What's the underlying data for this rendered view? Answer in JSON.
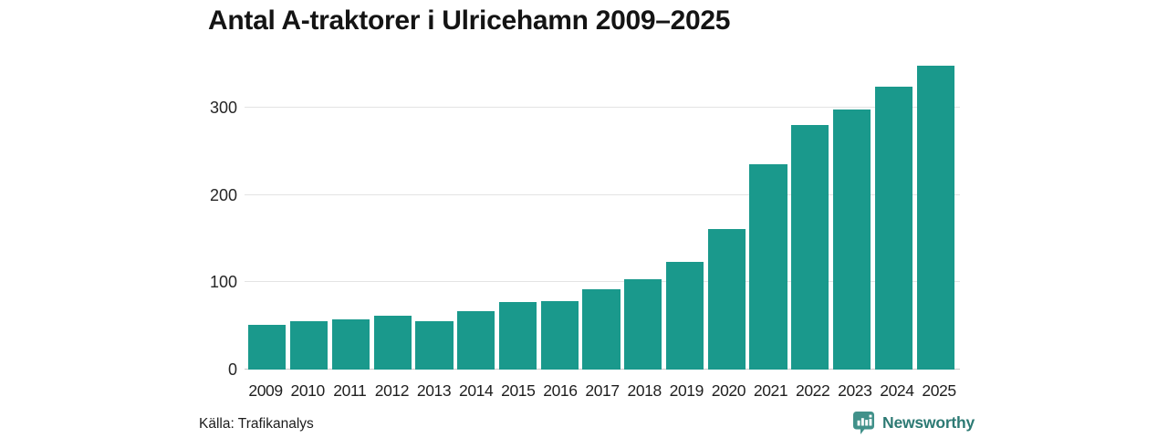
{
  "title": "Antal A-traktorer i Ulricehamn 2009–2025",
  "source": "Källa: Trafikanalys",
  "brand": {
    "name": "Newsworthy",
    "icon": "newsworthy-logo-icon",
    "icon_color": "#41918a",
    "text_color": "#2d7a74"
  },
  "colors": {
    "bar": "#1a998c",
    "grid": "#e4e4e4",
    "axis": "#c9c9c9",
    "text": "#1a1a1a",
    "background": "#ffffff"
  },
  "chart_data": {
    "type": "bar",
    "title": "Antal A-traktorer i Ulricehamn 2009–2025",
    "categories": [
      "2009",
      "2010",
      "2011",
      "2012",
      "2013",
      "2014",
      "2015",
      "2016",
      "2017",
      "2018",
      "2019",
      "2020",
      "2021",
      "2022",
      "2023",
      "2024",
      "2025"
    ],
    "values": [
      51,
      55,
      57,
      62,
      55,
      67,
      77,
      78,
      92,
      103,
      123,
      161,
      235,
      280,
      298,
      324,
      348
    ],
    "xlabel": "",
    "ylabel": "",
    "ylim": [
      0,
      350
    ],
    "yticks": [
      0,
      100,
      200,
      300
    ],
    "grid": true,
    "legend": "none",
    "bar_color": "#1a998c"
  }
}
